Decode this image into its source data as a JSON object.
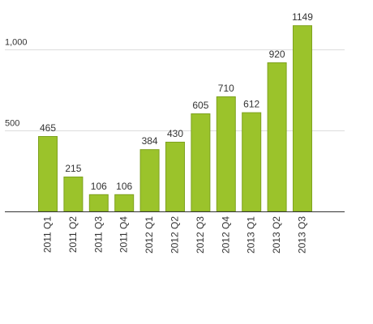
{
  "chart_data": {
    "type": "bar",
    "categories": [
      "2011 Q1",
      "2011 Q2",
      "2011 Q3",
      "2011 Q4",
      "2012 Q1",
      "2012 Q2",
      "2012 Q3",
      "2012 Q4",
      "2013 Q1",
      "2013 Q2",
      "2013 Q3"
    ],
    "values": [
      465,
      215,
      106,
      106,
      384,
      430,
      605,
      710,
      612,
      920,
      1149
    ],
    "data_labels": [
      "465",
      "215",
      "106",
      "106",
      "384",
      "430",
      "605",
      "710",
      "612",
      "920",
      "1149"
    ],
    "ylim": [
      0,
      1000
    ],
    "yticks": [
      500,
      1000
    ],
    "ytick_labels": [
      "500",
      "1,000"
    ],
    "grid": true,
    "legend": "none",
    "colors": {
      "bar_fill": "#9bc32b",
      "bar_stroke": "#7ea21e",
      "grid": "#dddddd",
      "axis": "#333333",
      "text": "#333333"
    }
  }
}
